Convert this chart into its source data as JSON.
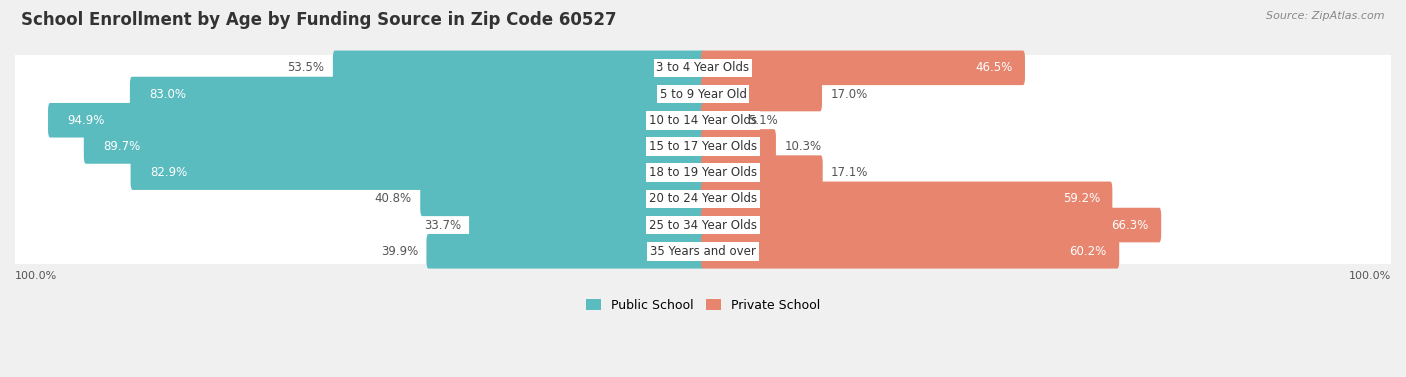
{
  "title": "School Enrollment by Age by Funding Source in Zip Code 60527",
  "source": "Source: ZipAtlas.com",
  "categories": [
    "3 to 4 Year Olds",
    "5 to 9 Year Old",
    "10 to 14 Year Olds",
    "15 to 17 Year Olds",
    "18 to 19 Year Olds",
    "20 to 24 Year Olds",
    "25 to 34 Year Olds",
    "35 Years and over"
  ],
  "public_values": [
    53.5,
    83.0,
    94.9,
    89.7,
    82.9,
    40.8,
    33.7,
    39.9
  ],
  "private_values": [
    46.5,
    17.0,
    5.1,
    10.3,
    17.1,
    59.2,
    66.3,
    60.2
  ],
  "public_color": "#5bbcbf",
  "private_color": "#e8856e",
  "background_color": "#f0f0f0",
  "row_bg_color": "#ffffff",
  "row_alt_bg_color": "#f0f0f0",
  "axis_label_left": "100.0%",
  "axis_label_right": "100.0%",
  "legend_public": "Public School",
  "legend_private": "Private School",
  "title_fontsize": 12,
  "label_fontsize": 8.5,
  "category_fontsize": 8.5
}
